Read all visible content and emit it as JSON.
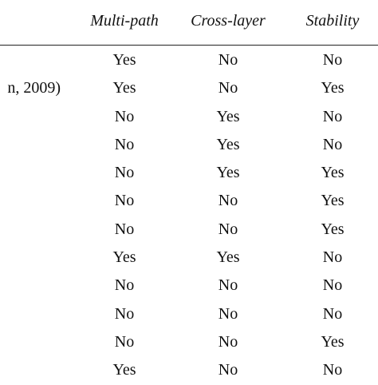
{
  "table": {
    "headers": {
      "multi_path": "Multi-path",
      "cross_layer": "Cross-layer",
      "stability": "Stability"
    },
    "rows": [
      {
        "ref": "",
        "multi_path": "Yes",
        "cross_layer": "No",
        "stability": "No"
      },
      {
        "ref": "n, 2009)",
        "multi_path": "Yes",
        "cross_layer": "No",
        "stability": "Yes"
      },
      {
        "ref": "",
        "multi_path": "No",
        "cross_layer": "Yes",
        "stability": "No"
      },
      {
        "ref": "",
        "multi_path": "No",
        "cross_layer": "Yes",
        "stability": "No"
      },
      {
        "ref": "",
        "multi_path": "No",
        "cross_layer": "Yes",
        "stability": "Yes"
      },
      {
        "ref": "",
        "multi_path": "No",
        "cross_layer": "No",
        "stability": "Yes"
      },
      {
        "ref": "",
        "multi_path": "No",
        "cross_layer": "No",
        "stability": "Yes"
      },
      {
        "ref": "",
        "multi_path": "Yes",
        "cross_layer": "Yes",
        "stability": "No"
      },
      {
        "ref": "",
        "multi_path": "No",
        "cross_layer": "No",
        "stability": "No"
      },
      {
        "ref": "",
        "multi_path": "No",
        "cross_layer": "No",
        "stability": "No"
      },
      {
        "ref": "",
        "multi_path": "No",
        "cross_layer": "No",
        "stability": "Yes"
      },
      {
        "ref": "",
        "multi_path": "Yes",
        "cross_layer": "No",
        "stability": "No"
      }
    ]
  }
}
